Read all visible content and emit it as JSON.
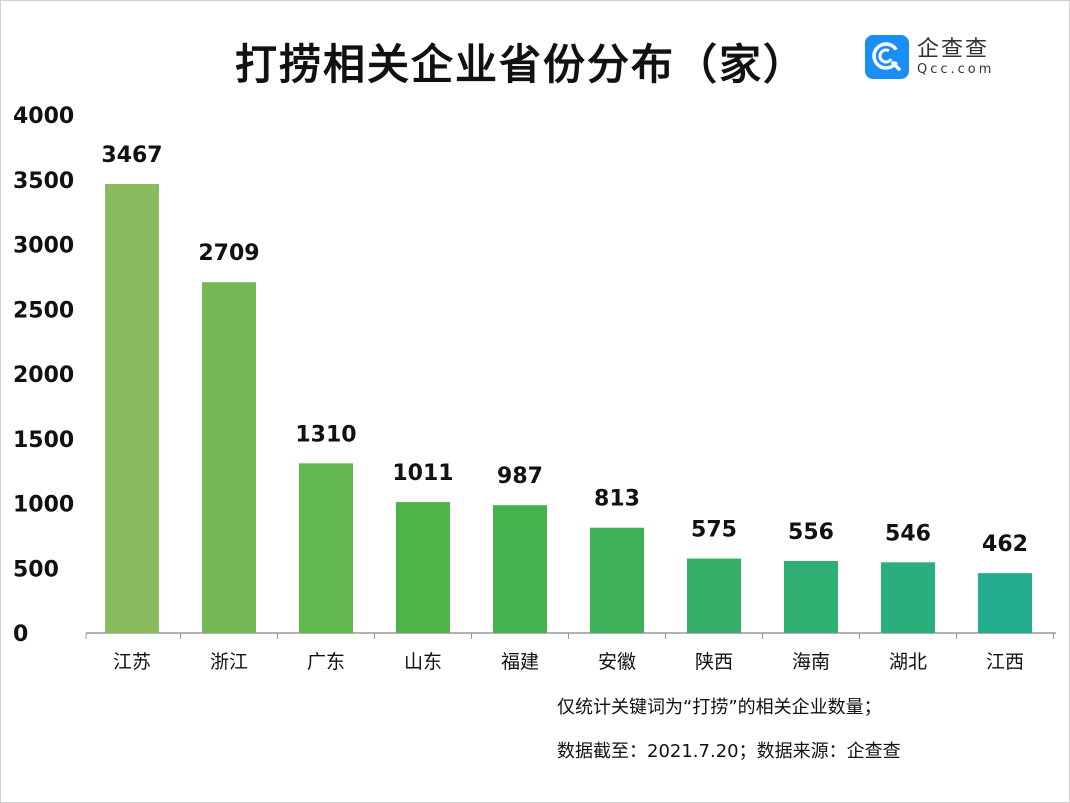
{
  "chart_data": {
    "type": "bar",
    "title": "打捞相关企业省份分布（家）",
    "categories": [
      "江苏",
      "浙江",
      "广东",
      "山东",
      "福建",
      "安徽",
      "陕西",
      "海南",
      "湖北",
      "江西"
    ],
    "values": [
      3467,
      2709,
      1310,
      1011,
      987,
      813,
      575,
      556,
      546,
      462
    ],
    "ylim": [
      0,
      4000
    ],
    "yticks": [
      0,
      500,
      1000,
      1500,
      2000,
      2500,
      3000,
      3500,
      4000
    ],
    "grid": false,
    "data_labels": true,
    "colors": [
      "#8aba5e",
      "#74b856",
      "#62b74f",
      "#4fb448",
      "#44b34c",
      "#3db15a",
      "#36b068",
      "#2faf72",
      "#29ae7c",
      "#22ae8c"
    ]
  },
  "logo": {
    "cn": "企查查",
    "en": "Qcc.com",
    "color": "#1a8ef5"
  },
  "notes": [
    "仅统计关键词为“打捞”的相关企业数量；",
    "数据截至：2021.7.20；数据来源：企查查"
  ]
}
